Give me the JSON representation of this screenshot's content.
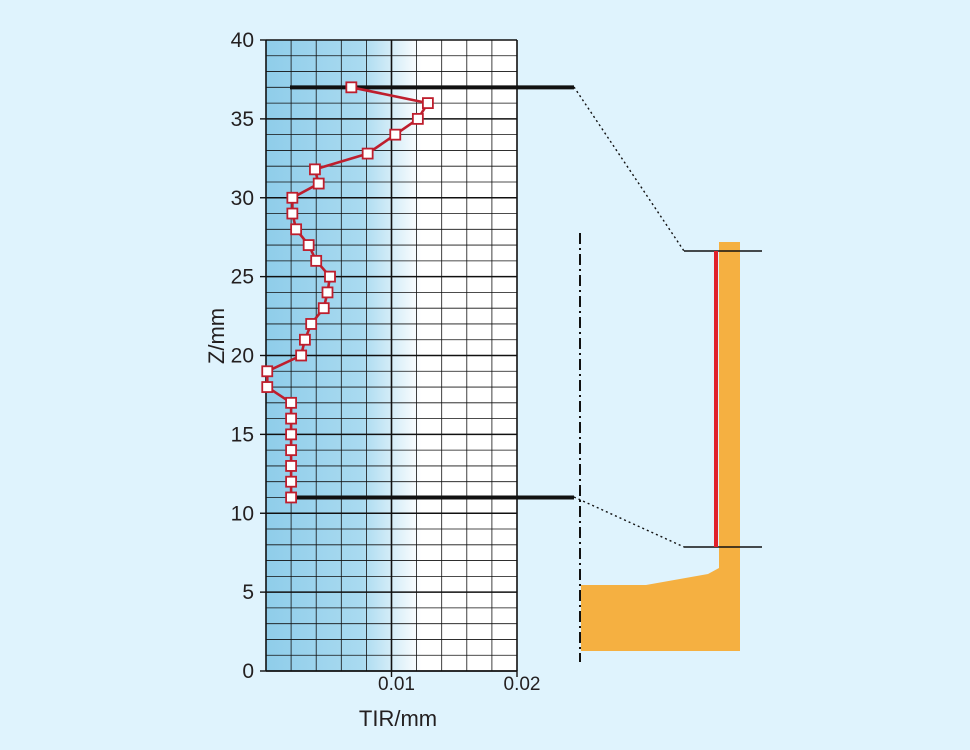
{
  "chart_data": {
    "type": "line",
    "xlabel": "TIR/mm",
    "ylabel": "Z/mm",
    "xlim": [
      0,
      0.02
    ],
    "ylim": [
      0,
      40
    ],
    "x_ticks": [
      {
        "value": 0.01,
        "label": "0.01"
      },
      {
        "value": 0.02,
        "label": "0.02"
      }
    ],
    "y_ticks": [
      {
        "value": 0,
        "label": "0"
      },
      {
        "value": 5,
        "label": "5"
      },
      {
        "value": 10,
        "label": "10"
      },
      {
        "value": 15,
        "label": "15"
      },
      {
        "value": 20,
        "label": "20"
      },
      {
        "value": 25,
        "label": "25"
      },
      {
        "value": 30,
        "label": "30"
      },
      {
        "value": 35,
        "label": "35"
      },
      {
        "value": 40,
        "label": "40"
      }
    ],
    "grid": true,
    "x_minor_step": 0.002,
    "y_minor_step": 1,
    "series": [
      {
        "color": "#be1e2d",
        "marker": "square",
        "x": [
          0.0068,
          0.0129,
          0.0121,
          0.0103,
          0.0081,
          0.0039,
          0.0042,
          0.0021,
          0.0021,
          0.0024,
          0.0034,
          0.004,
          0.0051,
          0.0049,
          0.0046,
          0.0036,
          0.0031,
          0.0028,
          0.0001,
          0.0001,
          0.002,
          0.002,
          0.002,
          0.002,
          0.002,
          0.002,
          0.002
        ],
        "y": [
          37,
          36,
          35,
          34,
          32.8,
          31.8,
          30.9,
          30,
          29,
          28,
          27,
          26,
          25,
          24,
          23,
          22,
          21,
          20,
          19,
          18,
          17,
          16,
          15,
          14,
          13,
          12,
          11
        ]
      }
    ],
    "reference_lines": [
      {
        "y": 37
      },
      {
        "y": 11
      }
    ]
  },
  "colors": {
    "background": "#dff3fd",
    "plot_gradient_start": "#8fcdea",
    "plot_gradient_end": "#ffffff",
    "grid": "#111111",
    "series": "#be1e2d",
    "part": "#f5b041",
    "indicator": "#e0202a"
  }
}
